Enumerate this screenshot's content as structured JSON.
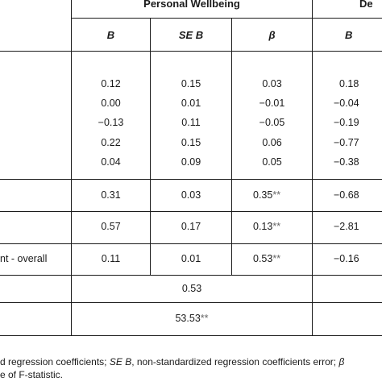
{
  "header": {
    "group_personal": "Personal Wellbeing",
    "group_next_partial": "De",
    "col_b": "B",
    "col_se_b": "SE B",
    "col_beta": "β",
    "col_b_next": "B"
  },
  "rows_block1": [
    {
      "b": "0.12",
      "se": "0.15",
      "beta": "0.03",
      "b2": "0.18"
    },
    {
      "b": "0.00",
      "se": "0.01",
      "beta": "−0.01",
      "b2": "−0.04"
    },
    {
      "b": "−0.13",
      "se": "0.11",
      "beta": "−0.05",
      "b2": "−0.19"
    },
    {
      "b": "0.22",
      "se": "0.15",
      "beta": "0.06",
      "b2": "−0.77"
    },
    {
      "b": "0.04",
      "se": "0.09",
      "beta": "0.05",
      "b2": "−0.38"
    }
  ],
  "row_a": {
    "b": "0.31",
    "se": "0.03",
    "beta": "0.35",
    "sig": "**",
    "b2": "−0.68"
  },
  "row_b": {
    "b": "0.57",
    "se": "0.17",
    "beta": "0.13",
    "sig": "**",
    "b2": "−2.81"
  },
  "row_c": {
    "label": "nt - overall",
    "b": "0.11",
    "se": "0.01",
    "beta": "0.53",
    "sig": "**",
    "b2": "−0.16"
  },
  "r2": {
    "value": "0.53"
  },
  "f": {
    "value": "53.53",
    "sig": "**"
  },
  "notes": {
    "line1_a": "d regression coefficients; ",
    "line1_se": "SE B",
    "line1_b": ", non-standardized regression coefficients error; ",
    "line1_beta": "β",
    "line2": "e of F-statistic."
  }
}
